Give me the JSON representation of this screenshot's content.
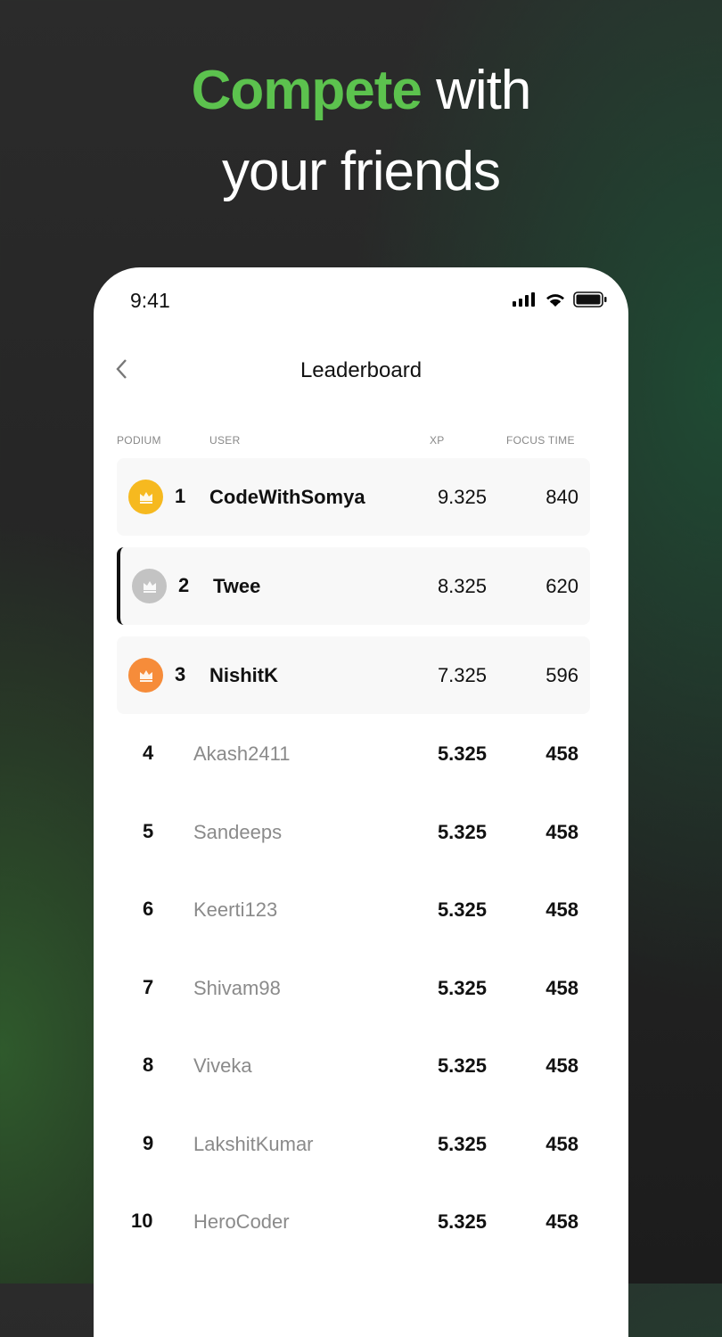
{
  "headline": {
    "highlight": "Compete",
    "rest1": " with",
    "line2": "your friends",
    "accent": "#5cc24e"
  },
  "status_bar": {
    "time": "9:41",
    "icons": [
      "signal-icon",
      "wifi-icon",
      "battery-icon"
    ]
  },
  "header": {
    "title": "Leaderboard",
    "back_icon": "chevron-left-icon"
  },
  "columns": {
    "podium": "PODIUM",
    "user": "USER",
    "xp": "XP",
    "focus": "FOCUS TIME"
  },
  "podium": [
    {
      "rank": "1",
      "user": "CodeWithSomya",
      "xp": "9.325",
      "focus": "840",
      "color": "#f6b91f"
    },
    {
      "rank": "2",
      "user": "Twee",
      "xp": "8.325",
      "focus": "620",
      "color": "#c3c3c3",
      "selected": true
    },
    {
      "rank": "3",
      "user": "NishitK",
      "xp": "7.325",
      "focus": "596",
      "color": "#f68c3a"
    }
  ],
  "rows": [
    {
      "rank": "4",
      "user": "Akash2411",
      "xp": "5.325",
      "focus": "458"
    },
    {
      "rank": "5",
      "user": "Sandeeps",
      "xp": "5.325",
      "focus": "458"
    },
    {
      "rank": "6",
      "user": "Keerti123",
      "xp": "5.325",
      "focus": "458"
    },
    {
      "rank": "7",
      "user": "Shivam98",
      "xp": "5.325",
      "focus": "458"
    },
    {
      "rank": "8",
      "user": "Viveka",
      "xp": "5.325",
      "focus": "458"
    },
    {
      "rank": "9",
      "user": "LakshitKumar",
      "xp": "5.325",
      "focus": "458"
    },
    {
      "rank": "10",
      "user": "HeroCoder",
      "xp": "5.325",
      "focus": "458"
    }
  ]
}
